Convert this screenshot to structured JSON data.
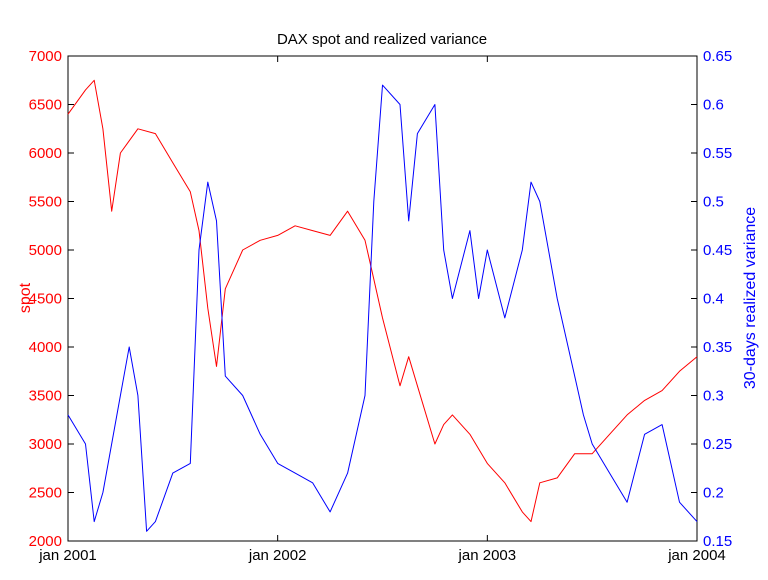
{
  "chart_data": {
    "type": "line",
    "title": "DAX spot and realized variance",
    "x_ticks": [
      "jan 2001",
      "jan 2002",
      "jan 2003",
      "jan 2004"
    ],
    "x_range": [
      "jan 2001",
      "jan 2004"
    ],
    "grid": false,
    "legend": "none",
    "left_axis": {
      "label": "spot",
      "color": "#ff0000",
      "range": [
        2000,
        7000
      ],
      "ticks": [
        "2000",
        "2500",
        "3000",
        "3500",
        "4000",
        "4500",
        "5000",
        "5500",
        "6000",
        "6500",
        "7000"
      ]
    },
    "right_axis": {
      "label": "30-days realized variance",
      "color": "#0000ff",
      "range": [
        0.15,
        0.65
      ],
      "ticks": [
        "0.15",
        "0.2",
        "0.25",
        "0.3",
        "0.35",
        "0.4",
        "0.45",
        "0.5",
        "0.55",
        "0.6",
        "0.65"
      ]
    },
    "series": [
      {
        "axis": "left",
        "color": "#ff0000",
        "x": [
          "2001-01",
          "2001-02",
          "2001-02",
          "2001-03",
          "2001-03",
          "2001-04",
          "2001-05",
          "2001-06",
          "2001-07",
          "2001-08",
          "2001-08",
          "2001-09",
          "2001-09",
          "2001-10",
          "2001-11",
          "2001-12",
          "2002-01",
          "2002-02",
          "2002-03",
          "2002-04",
          "2002-05",
          "2002-06",
          "2002-06",
          "2002-07",
          "2002-08",
          "2002-08",
          "2002-09",
          "2002-10",
          "2002-10",
          "2002-11",
          "2002-12",
          "2003-01",
          "2003-02",
          "2003-03",
          "2003-03",
          "2003-04",
          "2003-05",
          "2003-06",
          "2003-07",
          "2003-08",
          "2003-09",
          "2003-10",
          "2003-11",
          "2003-12",
          "2004-01"
        ],
        "values": [
          6400,
          6650,
          6750,
          6250,
          5400,
          6000,
          6250,
          6200,
          5900,
          5600,
          5200,
          4400,
          3800,
          4600,
          5000,
          5100,
          5150,
          5250,
          5200,
          5150,
          5400,
          5100,
          4700,
          4300,
          3600,
          3900,
          3600,
          3000,
          3200,
          3300,
          3100,
          2800,
          2600,
          2300,
          2200,
          2600,
          2650,
          2900,
          2900,
          3100,
          3300,
          3450,
          3550,
          3750,
          3900
        ]
      },
      {
        "axis": "right",
        "color": "#0000ff",
        "x": [
          "2001-01",
          "2001-02",
          "2001-02",
          "2001-03",
          "2001-04",
          "2001-04",
          "2001-05",
          "2001-05",
          "2001-06",
          "2001-07",
          "2001-08",
          "2001-08",
          "2001-09",
          "2001-09",
          "2001-10",
          "2001-11",
          "2001-12",
          "2002-01",
          "2002-02",
          "2002-03",
          "2002-04",
          "2002-05",
          "2002-06",
          "2002-06",
          "2002-07",
          "2002-08",
          "2002-08",
          "2002-09",
          "2002-10",
          "2002-10",
          "2002-11",
          "2002-12",
          "2002-12",
          "2003-01",
          "2003-02",
          "2003-03",
          "2003-03",
          "2003-04",
          "2003-05",
          "2003-06",
          "2003-06",
          "2003-07",
          "2003-08",
          "2003-09",
          "2003-10",
          "2003-11",
          "2003-11",
          "2003-12",
          "2004-01"
        ],
        "values": [
          0.28,
          0.25,
          0.17,
          0.2,
          0.3,
          0.35,
          0.3,
          0.16,
          0.17,
          0.22,
          0.23,
          0.45,
          0.52,
          0.48,
          0.32,
          0.3,
          0.26,
          0.23,
          0.22,
          0.21,
          0.18,
          0.22,
          0.3,
          0.5,
          0.62,
          0.6,
          0.48,
          0.57,
          0.6,
          0.45,
          0.4,
          0.47,
          0.4,
          0.45,
          0.38,
          0.45,
          0.52,
          0.5,
          0.4,
          0.32,
          0.28,
          0.25,
          0.22,
          0.19,
          0.26,
          0.27,
          0.23,
          0.19,
          0.17
        ]
      }
    ]
  }
}
